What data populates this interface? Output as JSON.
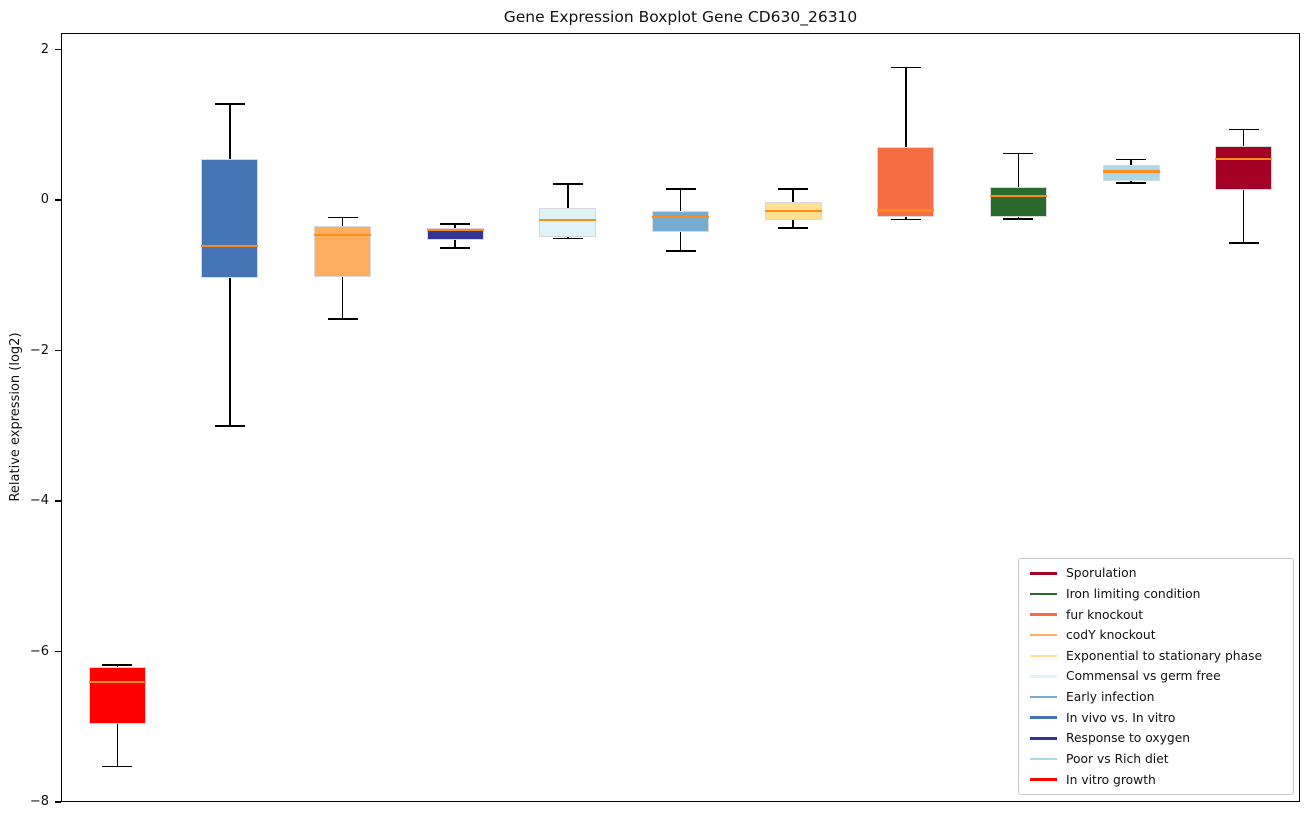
{
  "chart_data": {
    "type": "boxplot",
    "title": "Gene Expression Boxplot Gene CD630_26310",
    "ylabel": "Relative expression (log2)",
    "xlabel": "",
    "ylim": [
      -8.0,
      2.22
    ],
    "yticks": [
      2,
      0,
      -2,
      -4,
      -6,
      -8
    ],
    "xticks": [],
    "grid": false,
    "legend_position": "lower right",
    "colors": {
      "median": "#ff8c1a",
      "whisker": "#000000",
      "box_edge": "#d9d9d9",
      "axis": "#000000",
      "legend_border": "#c8c8c8",
      "background": "#ffffff"
    },
    "series": [
      {
        "name": "In vitro growth",
        "color": "#ff0000",
        "whisker_low": -7.53,
        "q1": -6.97,
        "median": -6.41,
        "q3": -6.21,
        "whisker_high": -6.18
      },
      {
        "name": "In vivo vs. In vitro",
        "color": "#4575b4",
        "whisker_low": -3.0,
        "q1": -1.03,
        "median": -0.61,
        "q3": 0.54,
        "whisker_high": 1.28
      },
      {
        "name": "codY knockout",
        "color": "#fdae61",
        "whisker_low": -1.58,
        "q1": -1.02,
        "median": -0.46,
        "q3": -0.34,
        "whisker_high": -0.23
      },
      {
        "name": "Response to oxygen",
        "color": "#313695",
        "whisker_low": -0.64,
        "q1": -0.53,
        "median": -0.4,
        "q3": -0.37,
        "whisker_high": -0.32
      },
      {
        "name": "Commensal vs germ free",
        "color": "#e0f3f8",
        "whisker_low": -0.51,
        "q1": -0.49,
        "median": -0.26,
        "q3": -0.1,
        "whisker_high": 0.21
      },
      {
        "name": "Early infection",
        "color": "#74add1",
        "whisker_low": -0.68,
        "q1": -0.42,
        "median": -0.23,
        "q3": -0.15,
        "whisker_high": 0.15
      },
      {
        "name": "Exponential to stationary phase",
        "color": "#fee090",
        "whisker_low": -0.37,
        "q1": -0.27,
        "median": -0.15,
        "q3": -0.02,
        "whisker_high": 0.15
      },
      {
        "name": "fur knockout",
        "color": "#f46d43",
        "whisker_low": -0.26,
        "q1": -0.22,
        "median": -0.14,
        "q3": 0.71,
        "whisker_high": 1.76
      },
      {
        "name": "Iron limiting condition",
        "color": "#2a6b2d",
        "whisker_low": -0.25,
        "q1": -0.22,
        "median": 0.05,
        "q3": 0.17,
        "whisker_high": 0.62
      },
      {
        "name": "Poor vs Rich diet",
        "color": "#abd9e9",
        "whisker_low": 0.23,
        "q1": 0.25,
        "median": 0.38,
        "q3": 0.46,
        "whisker_high": 0.54
      },
      {
        "name": "Sporulation",
        "color": "#a50026",
        "whisker_low": -0.57,
        "q1": 0.13,
        "median": 0.54,
        "q3": 0.72,
        "whisker_high": 0.94
      }
    ],
    "legend": [
      "Sporulation",
      "Iron limiting condition",
      "fur knockout",
      "codY knockout",
      "Exponential to stationary phase",
      "Commensal vs germ free",
      "Early infection",
      "In vivo vs. In vitro",
      "Response to oxygen",
      "Poor vs Rich diet",
      "In vitro growth"
    ]
  }
}
